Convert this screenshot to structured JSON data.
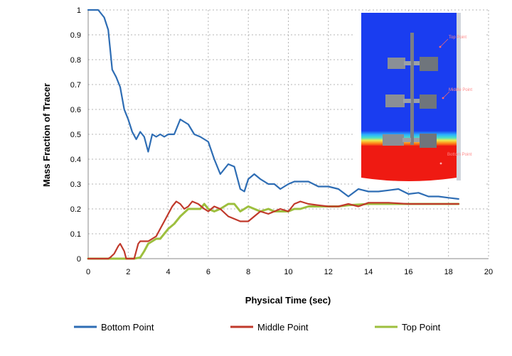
{
  "chart_data": {
    "type": "line",
    "xlabel": "Physical Time (sec)",
    "ylabel": "Mass Fraction of Tracer",
    "xlim": [
      0,
      20
    ],
    "ylim": [
      0,
      1
    ],
    "x_ticks": [
      "0",
      "2",
      "4",
      "6",
      "8",
      "10",
      "12",
      "14",
      "16",
      "18",
      "20"
    ],
    "y_ticks": [
      "0",
      "0.1",
      "0.2",
      "0.3",
      "0.4",
      "0.5",
      "0.6",
      "0.7",
      "0.8",
      "0.9",
      "1"
    ],
    "grid": "dotted",
    "legend_position": "bottom",
    "series": [
      {
        "name": "Bottom Point",
        "color": "#2e6db4",
        "x": [
          0,
          0.5,
          0.8,
          1.0,
          1.2,
          1.4,
          1.6,
          1.8,
          2.0,
          2.2,
          2.4,
          2.6,
          2.8,
          3.0,
          3.2,
          3.4,
          3.6,
          3.8,
          4.0,
          4.3,
          4.6,
          5.0,
          5.3,
          5.6,
          5.8,
          6.0,
          6.3,
          6.6,
          7.0,
          7.3,
          7.6,
          7.8,
          8.0,
          8.3,
          8.6,
          9.0,
          9.3,
          9.6,
          10.0,
          10.3,
          10.6,
          11.0,
          11.5,
          12.0,
          12.5,
          13.0,
          13.5,
          14.0,
          14.5,
          15.0,
          15.5,
          16.0,
          16.5,
          17.0,
          17.5,
          18.0,
          18.5
        ],
        "y": [
          1.0,
          1.0,
          0.97,
          0.92,
          0.76,
          0.73,
          0.69,
          0.6,
          0.56,
          0.51,
          0.48,
          0.51,
          0.49,
          0.43,
          0.5,
          0.49,
          0.5,
          0.49,
          0.5,
          0.5,
          0.56,
          0.54,
          0.5,
          0.49,
          0.48,
          0.47,
          0.4,
          0.34,
          0.38,
          0.37,
          0.28,
          0.27,
          0.32,
          0.34,
          0.32,
          0.3,
          0.3,
          0.28,
          0.3,
          0.31,
          0.31,
          0.31,
          0.29,
          0.29,
          0.28,
          0.25,
          0.28,
          0.27,
          0.27,
          0.275,
          0.28,
          0.26,
          0.265,
          0.25,
          0.25,
          0.245,
          0.24
        ]
      },
      {
        "name": "Middle Point",
        "color": "#c0392b",
        "x": [
          0,
          1.0,
          1.1,
          1.3,
          1.5,
          1.6,
          1.8,
          1.9,
          2.1,
          2.3,
          2.5,
          2.6,
          2.8,
          3.0,
          3.2,
          3.4,
          3.6,
          3.8,
          4.0,
          4.2,
          4.4,
          4.6,
          4.8,
          5.0,
          5.2,
          5.5,
          5.8,
          6.0,
          6.3,
          6.6,
          7.0,
          7.3,
          7.6,
          8.0,
          8.3,
          8.6,
          9.0,
          9.3,
          9.6,
          10.0,
          10.3,
          10.6,
          11.0,
          11.5,
          12.0,
          12.5,
          13.0,
          13.5,
          14.0,
          15.0,
          16.0,
          17.0,
          18.0,
          18.5
        ],
        "y": [
          0,
          0,
          0.005,
          0.02,
          0.05,
          0.06,
          0.03,
          0.0,
          0.0,
          0.0,
          0.06,
          0.07,
          0.07,
          0.07,
          0.08,
          0.09,
          0.12,
          0.15,
          0.18,
          0.21,
          0.23,
          0.22,
          0.2,
          0.21,
          0.23,
          0.22,
          0.2,
          0.19,
          0.21,
          0.2,
          0.17,
          0.16,
          0.15,
          0.15,
          0.17,
          0.19,
          0.18,
          0.19,
          0.2,
          0.19,
          0.22,
          0.23,
          0.22,
          0.215,
          0.21,
          0.21,
          0.22,
          0.21,
          0.225,
          0.225,
          0.22,
          0.22,
          0.22,
          0.22
        ]
      },
      {
        "name": "Top Point",
        "color": "#9dbf3e",
        "x": [
          0,
          2.0,
          2.3,
          2.6,
          2.8,
          3.0,
          3.2,
          3.4,
          3.6,
          3.8,
          4.0,
          4.3,
          4.6,
          5.0,
          5.3,
          5.6,
          5.8,
          6.0,
          6.3,
          6.6,
          7.0,
          7.3,
          7.6,
          8.0,
          8.3,
          8.6,
          9.0,
          9.3,
          9.6,
          10.0,
          10.3,
          10.6,
          11.0,
          11.5,
          12.0,
          12.5,
          13.0,
          14.0,
          15.0,
          16.0,
          17.0,
          18.0,
          18.5
        ],
        "y": [
          0,
          0,
          0.0,
          0.005,
          0.03,
          0.06,
          0.07,
          0.08,
          0.08,
          0.1,
          0.12,
          0.14,
          0.17,
          0.2,
          0.2,
          0.2,
          0.22,
          0.2,
          0.19,
          0.2,
          0.22,
          0.22,
          0.19,
          0.21,
          0.2,
          0.19,
          0.2,
          0.19,
          0.19,
          0.19,
          0.2,
          0.2,
          0.21,
          0.21,
          0.21,
          0.21,
          0.215,
          0.22,
          0.22,
          0.22,
          0.22,
          0.22,
          0.22
        ]
      }
    ]
  },
  "inset": {
    "labels": {
      "top": "Top Point",
      "middle": "Middle Point",
      "bottom": "Bottom Point"
    },
    "colors": {
      "upper_fluid": "#1a3df0",
      "lower_fluid": "#ef1a12",
      "interface": "#4be0c8"
    }
  }
}
